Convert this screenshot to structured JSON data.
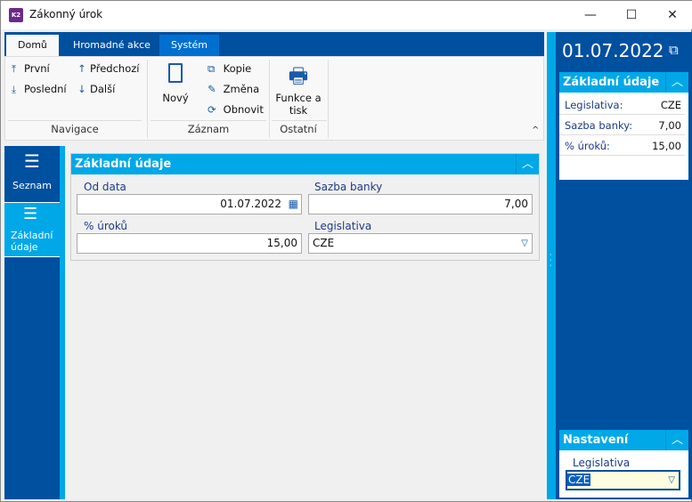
{
  "window": {
    "title": "Zákonný úrok",
    "app_icon": "K2",
    "minimize": "—",
    "maximize": "☐",
    "close": "✕"
  },
  "ribbon": {
    "tabs": [
      {
        "label": "Domů",
        "active": true
      },
      {
        "label": "Hromadné akce"
      },
      {
        "label": "Systém"
      }
    ],
    "groups": {
      "navigation": "Navigace",
      "record": "Záznam",
      "other": "Ostatní"
    },
    "buttons": {
      "first": "První",
      "previous": "Předchozí",
      "last": "Poslední",
      "next": "Další",
      "new": "Nový",
      "copy": "Kopie",
      "edit": "Změna",
      "refresh": "Obnovit",
      "print": "Funkce a tisk"
    }
  },
  "leftnav": {
    "items": [
      {
        "label": "Seznam"
      },
      {
        "label": "Základní údaje",
        "active": true
      }
    ]
  },
  "main": {
    "section_title": "Základní údaje",
    "fields": {
      "from_date": {
        "label": "Od data",
        "value": "01.07.2022"
      },
      "bank_rate": {
        "label": "Sazba banky",
        "value": "7,00"
      },
      "interest": {
        "label": "% úroků",
        "value": "15,00"
      },
      "legislation": {
        "label": "Legislativa",
        "value": "CZE"
      }
    }
  },
  "rightpanel": {
    "date": "01.07.2022",
    "section_title": "Základní údaje",
    "rows": [
      {
        "key": "Legislativa:",
        "value": "CZE"
      },
      {
        "key": "Sazba banky:",
        "value": "7,00"
      },
      {
        "key": "% úroků:",
        "value": "15,00"
      }
    ],
    "settings": {
      "title": "Nastavení",
      "label": "Legislativa",
      "value": "CZE"
    }
  },
  "colors": {
    "dark_blue": "#0050a0",
    "light_blue": "#00a8e8"
  }
}
